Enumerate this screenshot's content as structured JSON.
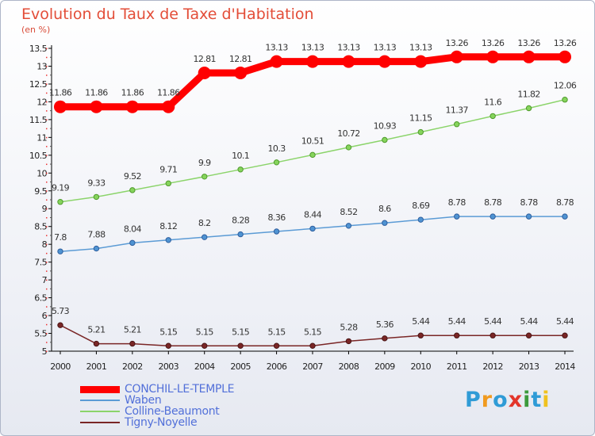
{
  "chart_data": {
    "type": "line",
    "title": "Evolution du Taux de Taxe d'Habitation",
    "subtitle": "(en %)",
    "xlabel": "",
    "ylabel": "(en %)",
    "x": [
      "2000",
      "2001",
      "2002",
      "2003",
      "2004",
      "2005",
      "2006",
      "2007",
      "2008",
      "2009",
      "2010",
      "2011",
      "2012",
      "2013",
      "2014"
    ],
    "ylim": [
      5,
      13.5
    ],
    "yticks": [
      "5",
      "5.5",
      "6",
      "6.5",
      "7",
      "7.5",
      "8",
      "8.5",
      "9",
      "9.5",
      "10",
      "10.5",
      "11",
      "11.5",
      "12",
      "12.5",
      "13",
      "13.5"
    ],
    "grid": false,
    "legend_position": "bottom-left",
    "series": [
      {
        "name": "CONCHIL-LE-TEMPLE",
        "color": "#ff0000",
        "values": [
          11.86,
          11.86,
          11.86,
          11.86,
          12.81,
          12.81,
          13.13,
          13.13,
          13.13,
          13.13,
          13.13,
          13.26,
          13.26,
          13.26,
          13.26
        ],
        "labels": [
          "11.86",
          "11.86",
          "11.86",
          "11.86",
          "12.81",
          "12.81",
          "13.13",
          "13.13",
          "13.13",
          "13.13",
          "13.13",
          "13.26",
          "13.26",
          "13.26",
          "13.26"
        ]
      },
      {
        "name": "Waben",
        "color": "#5b9bd5",
        "values": [
          7.8,
          7.88,
          8.04,
          8.12,
          8.2,
          8.28,
          8.36,
          8.44,
          8.52,
          8.6,
          8.69,
          8.78,
          8.78,
          8.78,
          8.78
        ],
        "labels": [
          "7.8",
          "7.88",
          "8.04",
          "8.12",
          "8.2",
          "8.28",
          "8.36",
          "8.44",
          "8.52",
          "8.6",
          "8.69",
          "8.78",
          "8.78",
          "8.78",
          "8.78"
        ]
      },
      {
        "name": "Colline-Beaumont",
        "color": "#8bd46a",
        "values": [
          9.19,
          9.33,
          9.52,
          9.71,
          9.9,
          10.1,
          10.3,
          10.51,
          10.72,
          10.93,
          11.15,
          11.37,
          11.6,
          11.82,
          12.06
        ],
        "labels": [
          "9.19",
          "9.33",
          "9.52",
          "9.71",
          "9.9",
          "10.1",
          "10.3",
          "10.51",
          "10.72",
          "10.93",
          "11.15",
          "11.37",
          "11.6",
          "11.82",
          "12.06"
        ]
      },
      {
        "name": "Tigny-Noyelle",
        "color": "#7a2626",
        "values": [
          5.73,
          5.21,
          5.21,
          5.15,
          5.15,
          5.15,
          5.15,
          5.15,
          5.28,
          5.36,
          5.44,
          5.44,
          5.44,
          5.44,
          5.44
        ],
        "labels": [
          "5.73",
          "5.21",
          "5.21",
          "5.15",
          "5.15",
          "5.15",
          "5.15",
          "5.15",
          "5.28",
          "5.36",
          "5.44",
          "5.44",
          "5.44",
          "5.44",
          "5.44"
        ]
      }
    ]
  },
  "logo": {
    "text": "Proxiti",
    "letter_colors": [
      "#2f9bd6",
      "#f09a1f",
      "#2f9bd6",
      "#e3352a",
      "#3c9a3c",
      "#2f9bd6",
      "#f0c21f"
    ]
  }
}
